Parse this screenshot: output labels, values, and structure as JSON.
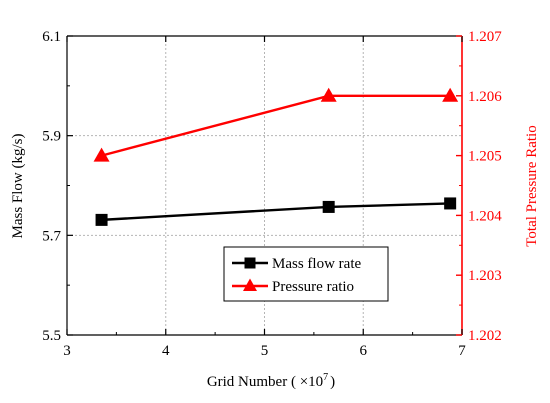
{
  "chart_data": {
    "type": "line",
    "xlabel": "Grid Number ( ×10",
    "xlabel_sup": "7",
    "xlabel_end": ")",
    "ylabel_left": "Mass Flow (kg/s)",
    "ylabel_right": "Total Pressure Ratio",
    "xlim": [
      3,
      7
    ],
    "ylim_left": [
      5.5,
      6.1
    ],
    "ylim_right": [
      1.202,
      1.207
    ],
    "x_ticks": [
      "3",
      "4",
      "5",
      "6",
      "7"
    ],
    "y_left_ticks": [
      "5.5",
      "5.7",
      "5.9",
      "6.1"
    ],
    "y_right_ticks": [
      "1.202",
      "1.203",
      "1.204",
      "1.205",
      "1.206",
      "1.207"
    ],
    "grid": true,
    "legend_position": "bottom-right",
    "series": [
      {
        "name": "Mass flow rate",
        "axis": "left",
        "color": "#000000",
        "marker": "square",
        "x": [
          3.35,
          5.65,
          6.88
        ],
        "y": [
          5.731,
          5.757,
          5.764
        ]
      },
      {
        "name": "Pressure ratio",
        "axis": "right",
        "color": "#ff0000",
        "marker": "triangle",
        "x": [
          3.35,
          5.65,
          6.88
        ],
        "y": [
          1.205,
          1.206,
          1.206
        ]
      }
    ]
  }
}
